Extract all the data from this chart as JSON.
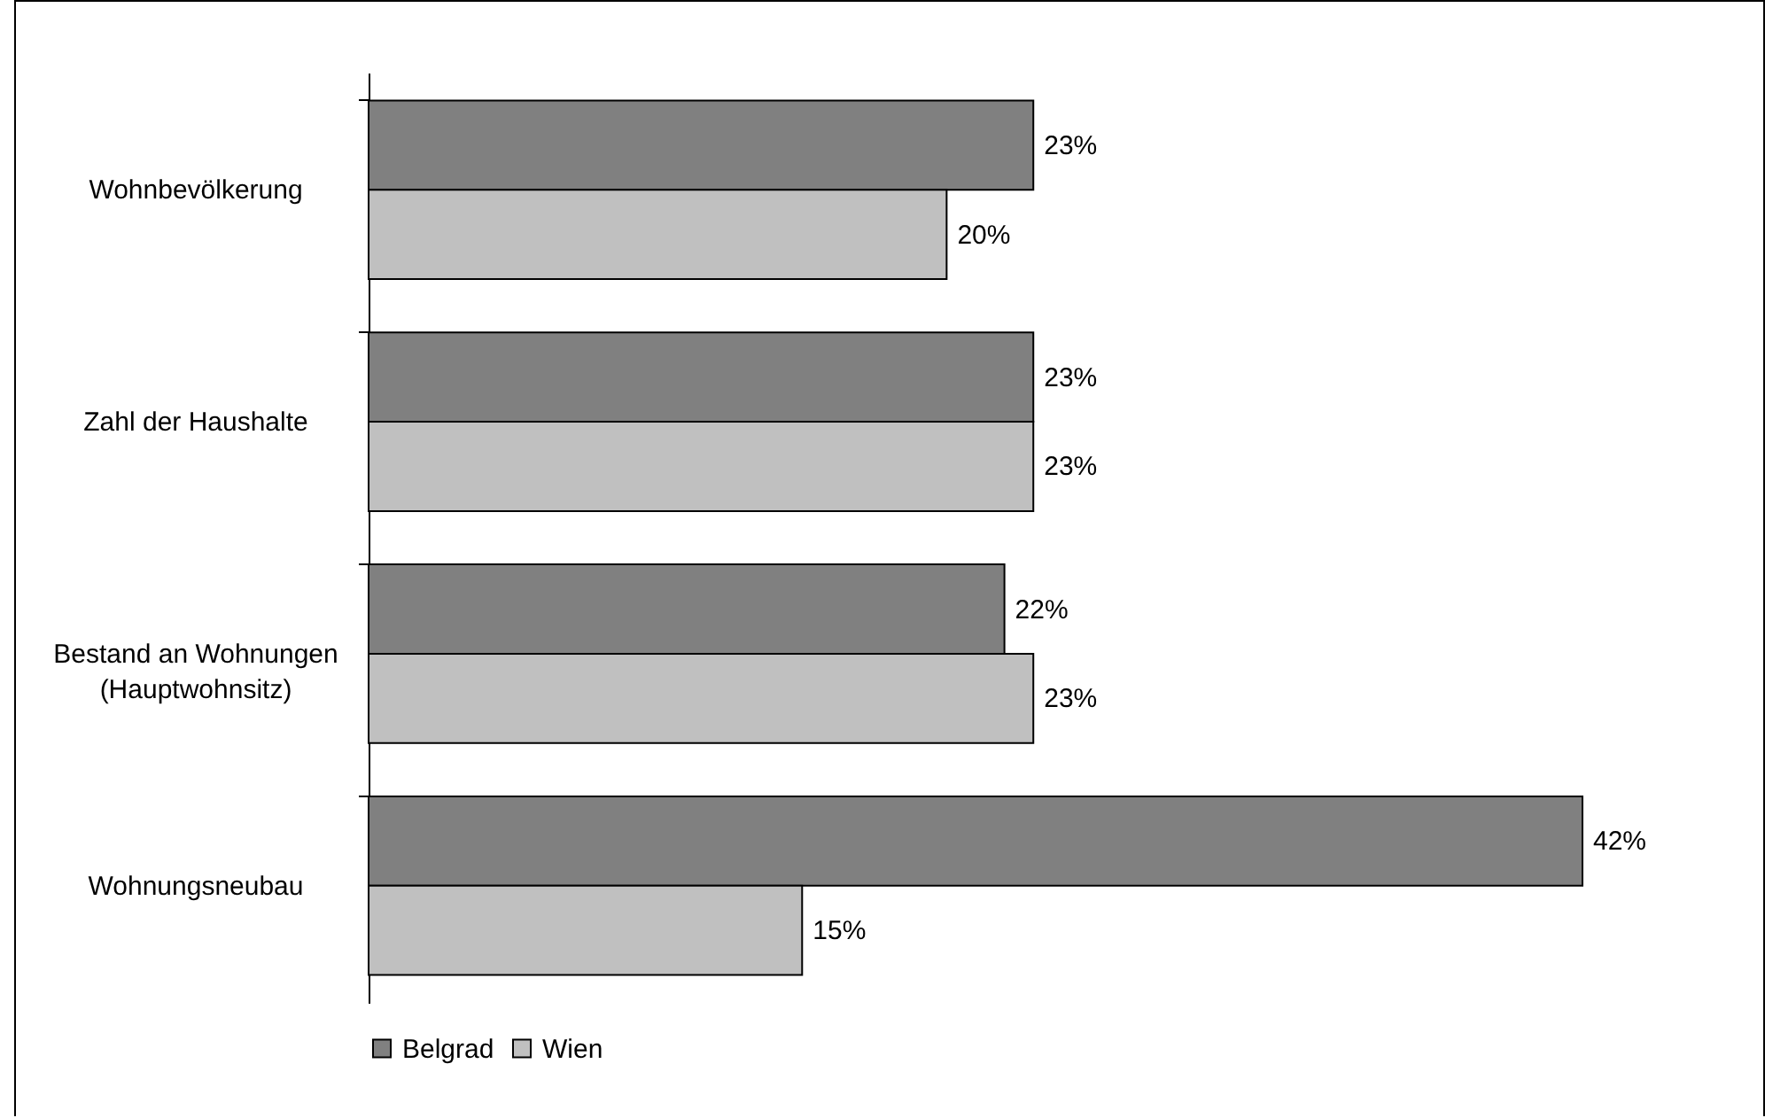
{
  "chart_data": {
    "type": "bar",
    "orientation": "horizontal",
    "categories": [
      "Wohnbevölkerung",
      "Zahl der Haushalte",
      "Bestand an Wohnungen (Hauptwohnsitz)",
      "Wohnungsneubau"
    ],
    "series": [
      {
        "name": "Belgrad",
        "color": "#808080",
        "values": [
          23,
          23,
          22,
          42
        ],
        "value_labels": [
          "23%",
          "23%",
          "22%",
          "42%"
        ]
      },
      {
        "name": "Wien",
        "color": "#c0c0c0",
        "values": [
          20,
          23,
          23,
          15
        ],
        "value_labels": [
          "20%",
          "23%",
          "23%",
          "15%"
        ]
      }
    ],
    "legend": "bottom"
  }
}
